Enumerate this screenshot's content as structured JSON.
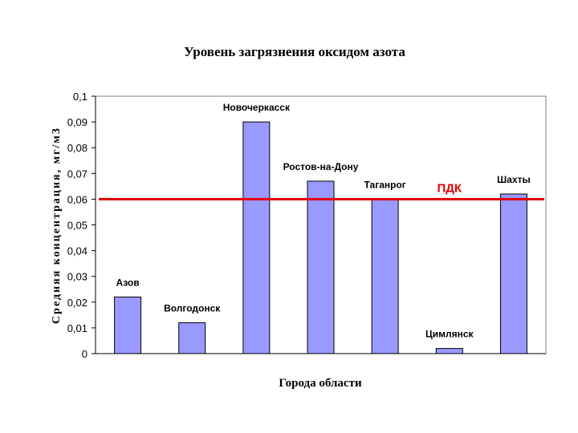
{
  "chart_data": {
    "type": "bar",
    "title": "Уровень загрязнения оксидом азота",
    "xlabel": "Города области",
    "ylabel": "Средняя концентрация, мг/м3",
    "ylim": [
      0,
      0.1
    ],
    "ytick_labels": [
      "0",
      "0,01",
      "0,02",
      "0,03",
      "0,04",
      "0,05",
      "0,06",
      "0,07",
      "0,08",
      "0,09",
      "0,1"
    ],
    "categories": [
      "Азов",
      "Волгодонск",
      "Новочеркасск",
      "Ростов-на-Дону",
      "Таганрог",
      "Цимлянск",
      "Шахты"
    ],
    "values": [
      0.022,
      0.012,
      0.09,
      0.067,
      0.06,
      0.002,
      0.062
    ],
    "reference_line": {
      "label": "ПДК",
      "value": 0.06,
      "color": "#e00000"
    },
    "bar_color": "#9999ff",
    "grid": false,
    "legend": "none"
  }
}
